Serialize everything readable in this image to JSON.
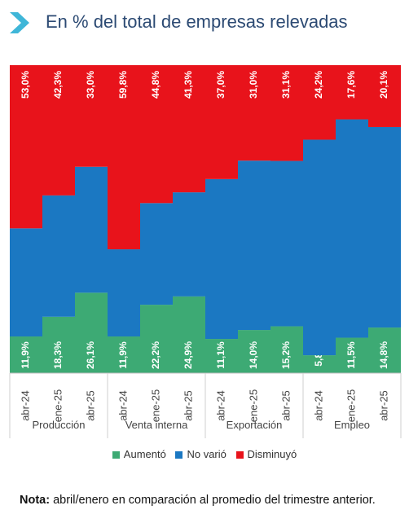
{
  "header": {
    "title": "En % del total de empresas relevadas",
    "icon": "chevron-right-icon",
    "accent_color": "#3fb6d8"
  },
  "chart_data": {
    "type": "bar",
    "stacked": true,
    "percent_stacked": true,
    "title": "En % del total de empresas relevadas",
    "xlabel": "",
    "ylabel": "",
    "ylim": [
      0,
      100
    ],
    "grid": false,
    "legend_position": "bottom",
    "categories": [
      "abr-24",
      "ene-25",
      "abr-25",
      "abr-24",
      "ene-25",
      "abr-25",
      "abr-24",
      "ene-25",
      "abr-25",
      "abr-24",
      "ene-25",
      "abr-25"
    ],
    "groups": [
      {
        "label": "Producción",
        "categories": [
          "abr-24",
          "ene-25",
          "abr-25"
        ]
      },
      {
        "label": "Venta interna",
        "categories": [
          "abr-24",
          "ene-25",
          "abr-25"
        ]
      },
      {
        "label": "Exportación",
        "categories": [
          "abr-24",
          "ene-25",
          "abr-25"
        ]
      },
      {
        "label": "Empleo",
        "categories": [
          "abr-24",
          "ene-25",
          "abr-25"
        ]
      }
    ],
    "series": [
      {
        "name": "Aumentó",
        "color": "#3daa74",
        "values": [
          11.9,
          18.3,
          26.1,
          11.9,
          22.2,
          24.9,
          11.1,
          14.0,
          15.2,
          5.8,
          11.5,
          14.8
        ],
        "labels": [
          "11,9%",
          "18,3%",
          "26,1%",
          "11,9%",
          "22,2%",
          "24,9%",
          "11,1%",
          "14,0%",
          "15,2%",
          "5,8%",
          "11,5%",
          "14,8%"
        ]
      },
      {
        "name": "No varió",
        "color": "#1b78c2",
        "values": [
          35.1,
          39.4,
          40.9,
          28.3,
          33.0,
          33.8,
          51.9,
          55.0,
          53.7,
          70.0,
          70.9,
          65.1
        ]
      },
      {
        "name": "Disminuyó",
        "color": "#e8131b",
        "values": [
          53.0,
          42.3,
          33.0,
          59.8,
          44.8,
          41.3,
          37.0,
          31.0,
          31.1,
          24.2,
          17.6,
          20.1
        ],
        "labels": [
          "53,0%",
          "42,3%",
          "33,0%",
          "59,8%",
          "44,8%",
          "41,3%",
          "37,0%",
          "31,0%",
          "31,1%",
          "24,2%",
          "17,6%",
          "20,1%"
        ]
      }
    ]
  },
  "legend": {
    "items": [
      {
        "label": "Aumentó",
        "color": "#3daa74"
      },
      {
        "label": "No varió",
        "color": "#1b78c2"
      },
      {
        "label": "Disminuyó",
        "color": "#e8131b"
      }
    ]
  },
  "note": {
    "label": "Nota:",
    "text": " abril/enero en comparación al promedio del trimestre anterior."
  }
}
